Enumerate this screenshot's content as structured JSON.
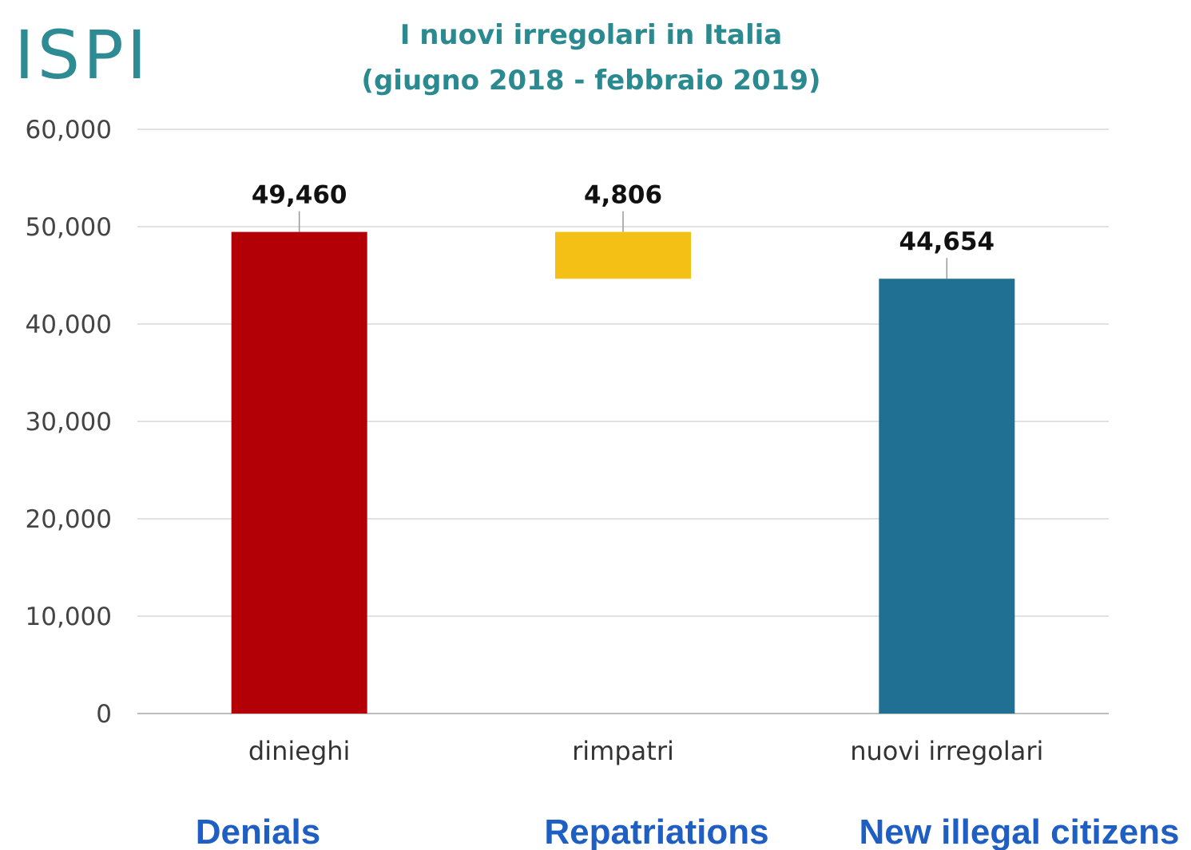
{
  "logo_text": "ISPI",
  "chart_data": {
    "type": "bar",
    "variant": "waterfall",
    "title": "I nuovi irregolari in Italia",
    "subtitle": "(giugno 2018 - febbraio 2019)",
    "categories": [
      "dinieghi",
      "rimpatri",
      "nuovi irregolari"
    ],
    "values": [
      49460,
      -4806,
      44654
    ],
    "bar_ranges": [
      [
        0,
        49460
      ],
      [
        44654,
        49460
      ],
      [
        0,
        44654
      ]
    ],
    "data_labels": [
      "49,460",
      "4,806",
      "44,654"
    ],
    "colors": [
      "#b30006",
      "#f5c015",
      "#1f7092"
    ],
    "ylim": [
      0,
      60000
    ],
    "yticks": [
      0,
      10000,
      20000,
      30000,
      40000,
      50000,
      60000
    ],
    "ytick_labels": [
      "0",
      "10,000",
      "20,000",
      "30,000",
      "40,000",
      "50,000",
      "60,000"
    ],
    "grid": true
  },
  "translations": [
    "Denials",
    "Repatriations",
    "New illegal citizens"
  ]
}
